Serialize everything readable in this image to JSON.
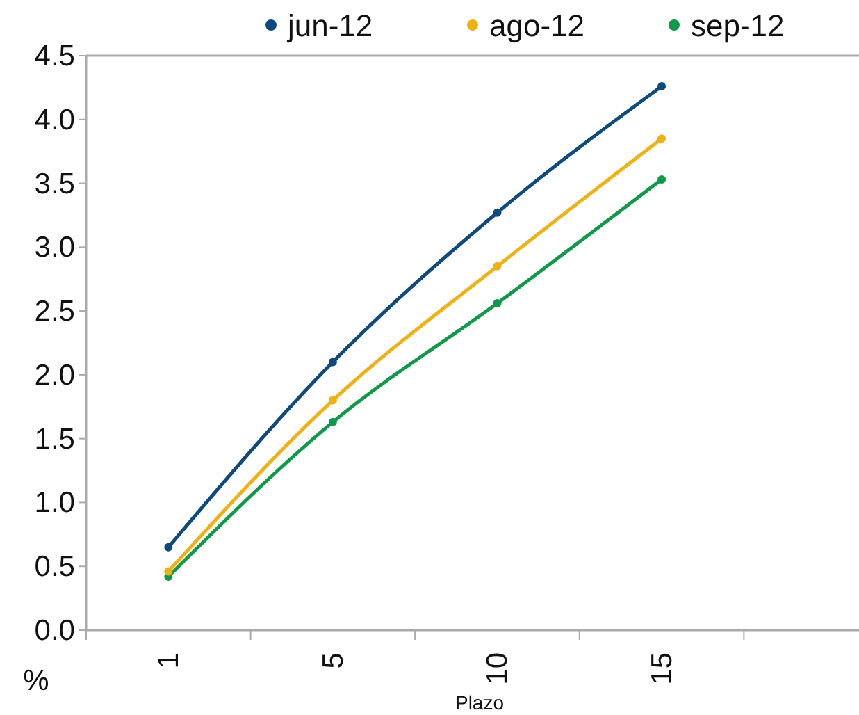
{
  "chart_data": {
    "type": "line",
    "categories": [
      "1",
      "5",
      "10",
      "15"
    ],
    "xlabel": "Plazo",
    "ylabel": "%",
    "ylim": [
      0,
      4.5
    ],
    "yticks": [
      {
        "value": 0,
        "label": "0.0"
      },
      {
        "value": 0.5,
        "label": "0.5"
      },
      {
        "value": 1,
        "label": "1.0"
      },
      {
        "value": 1.5,
        "label": "1.5"
      },
      {
        "value": 2,
        "label": "2.0"
      },
      {
        "value": 2.5,
        "label": "2.5"
      },
      {
        "value": 3,
        "label": "3.0"
      },
      {
        "value": 3.5,
        "label": "3.5"
      },
      {
        "value": 4,
        "label": "4.0"
      },
      {
        "value": 4.5,
        "label": "4.5"
      }
    ],
    "marker": "circle",
    "legend": "top",
    "grid": false,
    "series": [
      {
        "name": "jun-12",
        "color": "#0e4a7d",
        "values": [
          0.65,
          2.1,
          3.27,
          4.26
        ]
      },
      {
        "name": "ago-12",
        "color": "#f0b116",
        "values": [
          0.46,
          1.8,
          2.85,
          3.85
        ]
      },
      {
        "name": "sep-12",
        "color": "#11994a",
        "values": [
          0.42,
          1.63,
          2.56,
          3.53
        ]
      }
    ]
  }
}
